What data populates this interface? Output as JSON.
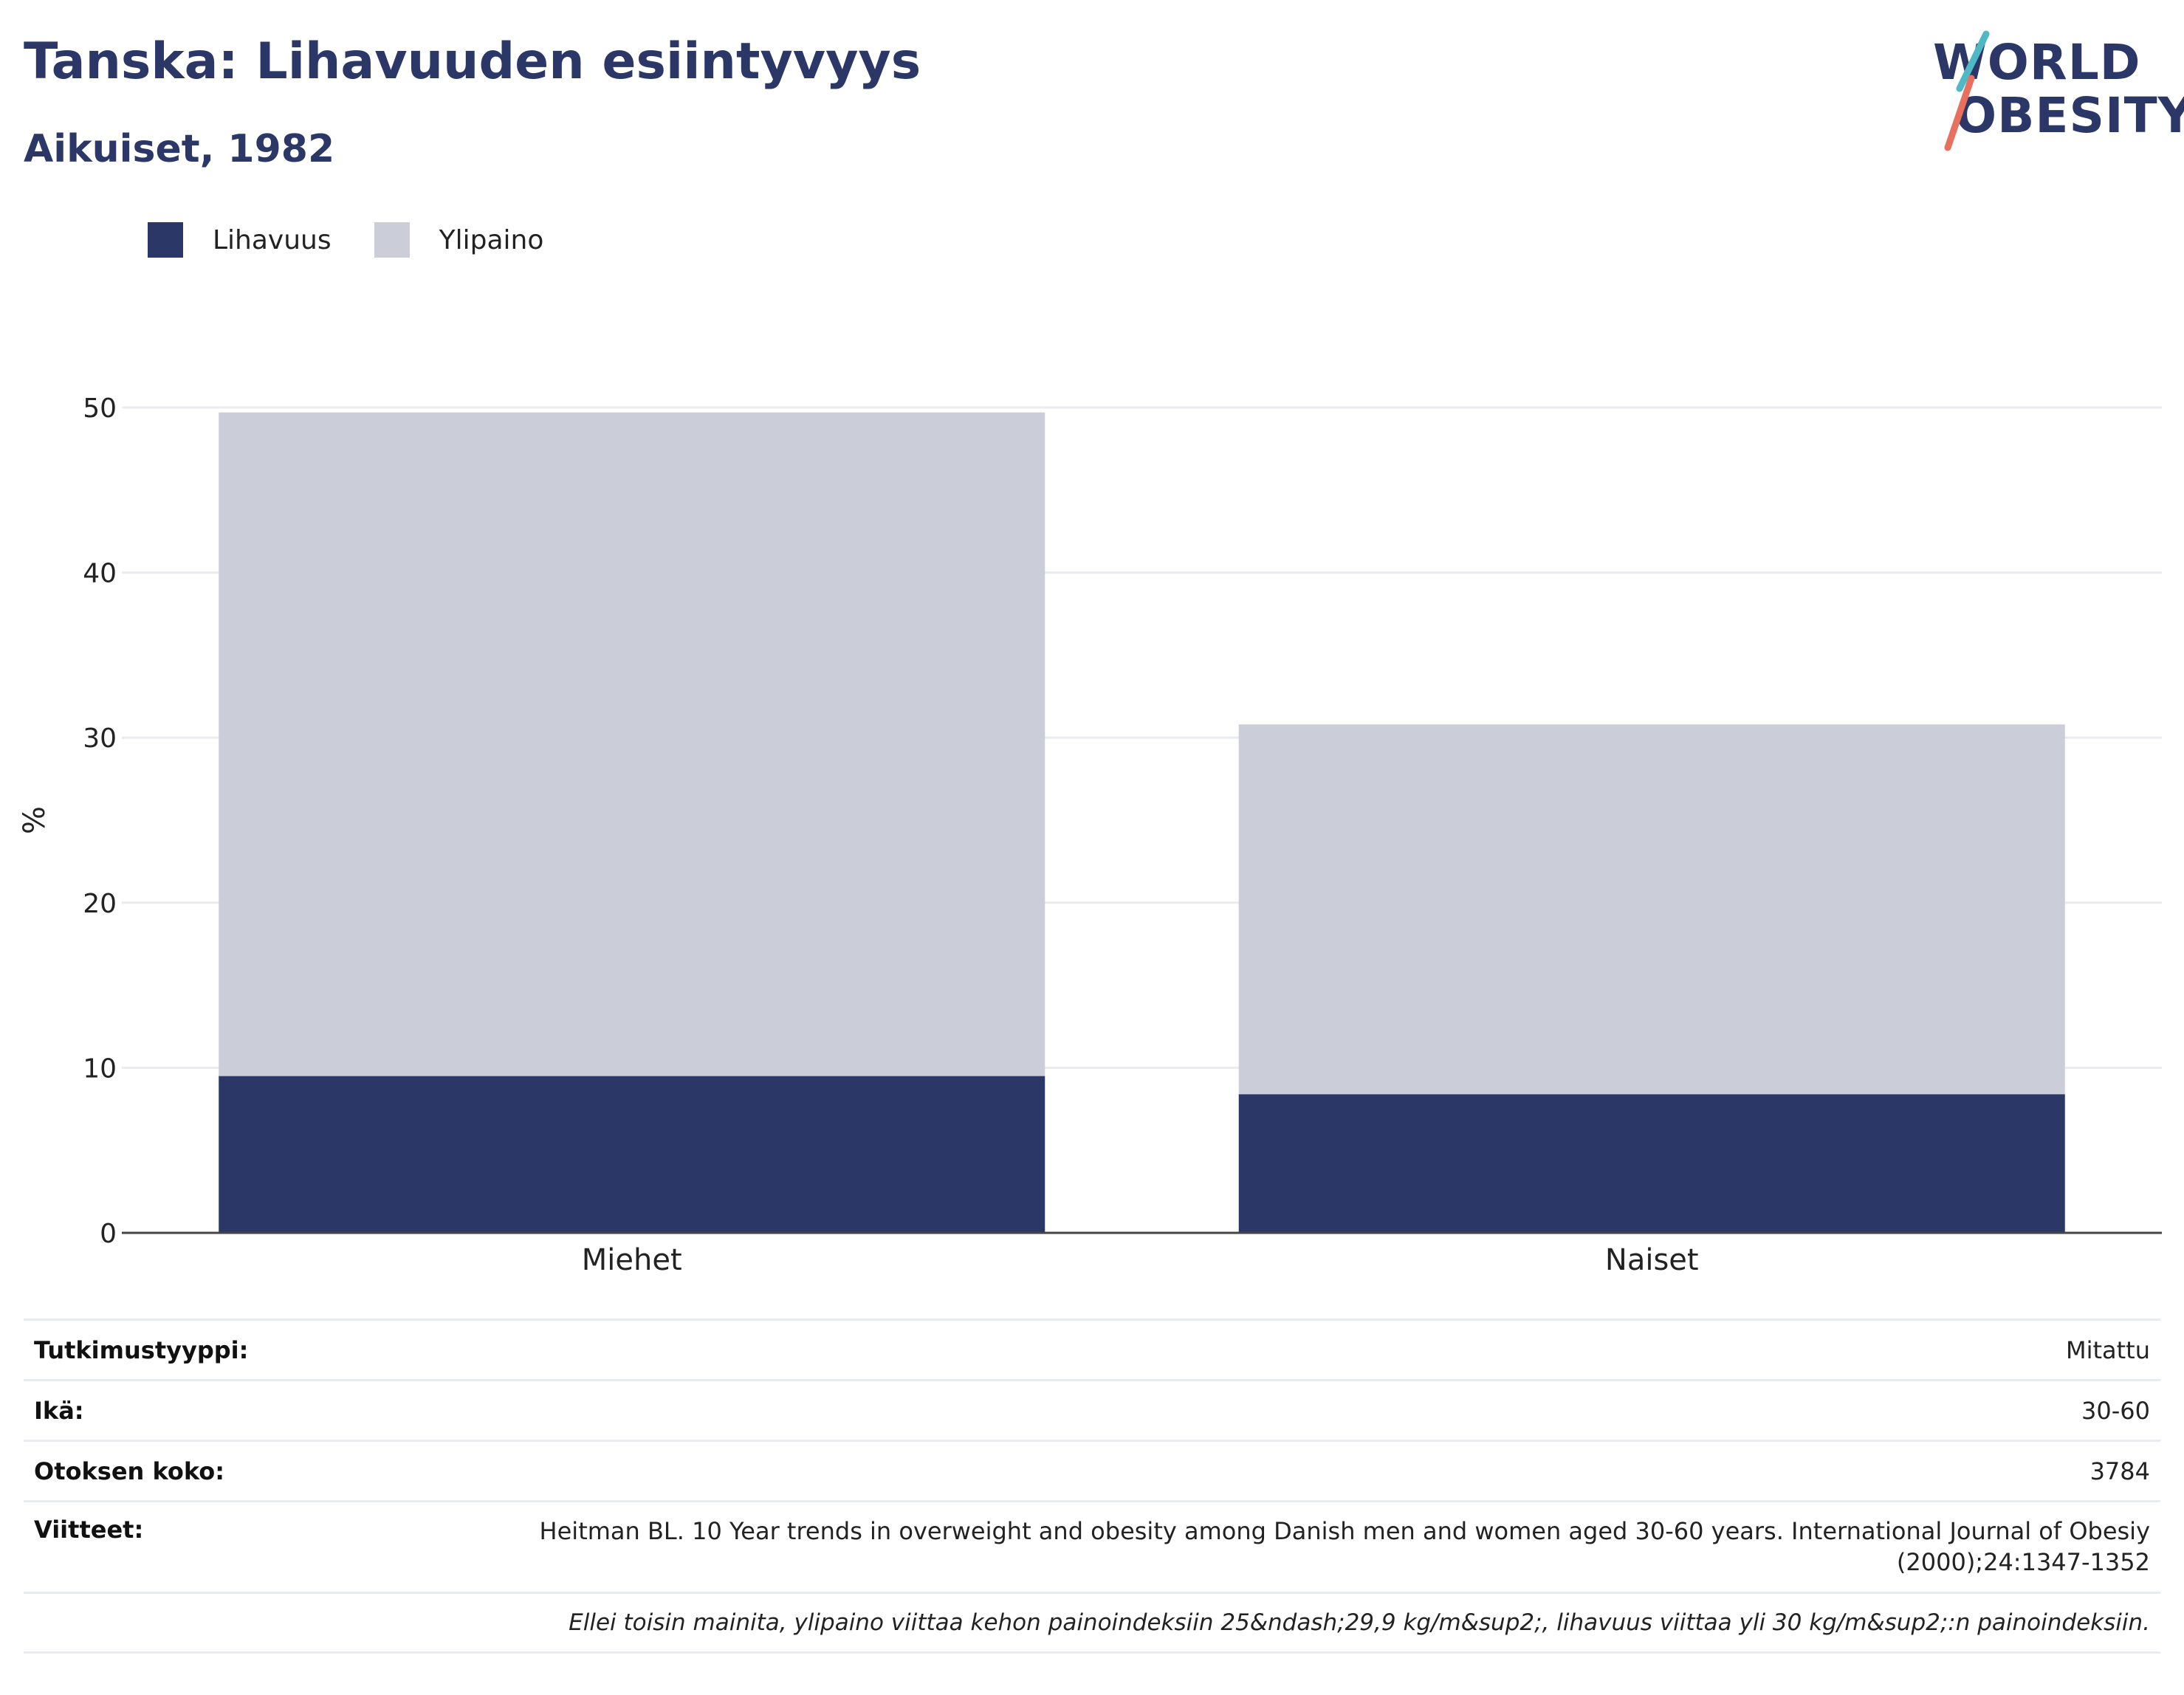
{
  "header": {
    "title": "Tanska: Lihavuuden esiintyvyys",
    "subtitle": "Aikuiset, 1982"
  },
  "logo": {
    "line1": "WORLD",
    "line2": "OBESITY",
    "accent_colors": [
      "#4fb8c4",
      "#e8705f"
    ]
  },
  "legend": [
    {
      "label": "Lihavuus",
      "color": "#2b3766"
    },
    {
      "label": "Ylipaino",
      "color": "#cbcdd8"
    }
  ],
  "chart_data": {
    "type": "bar",
    "stacked": true,
    "categories": [
      "Miehet",
      "Naiset"
    ],
    "series": [
      {
        "name": "Lihavuus",
        "values": [
          9.5,
          8.4
        ],
        "color": "#2b3766"
      },
      {
        "name": "Ylipaino",
        "values": [
          40.2,
          22.4
        ],
        "color": "#cbcdd8"
      }
    ],
    "ylabel": "%",
    "ylim": [
      0,
      50
    ],
    "yticks": [
      0,
      10,
      20,
      30,
      40,
      50
    ],
    "grid": true,
    "legend_position": "top-left"
  },
  "info": {
    "study_type": {
      "label": "Tutkimustyyppi:",
      "value": "Mitattu"
    },
    "age": {
      "label": "Ikä:",
      "value": "30-60"
    },
    "sample_size": {
      "label": "Otoksen koko:",
      "value": "3784"
    },
    "references": {
      "label": "Viitteet:",
      "value": "Heitman BL. 10 Year trends in overweight and obesity among Danish men and women aged 30-60 years. International Journal of Obesiy (2000);24:1347-1352"
    },
    "note": "Ellei toisin mainita, ylipaino viittaa kehon painoindeksiin 25&ndash;29,9 kg/m&sup2;, lihavuus viittaa yli 30 kg/m&sup2;:n painoindeksiin."
  }
}
